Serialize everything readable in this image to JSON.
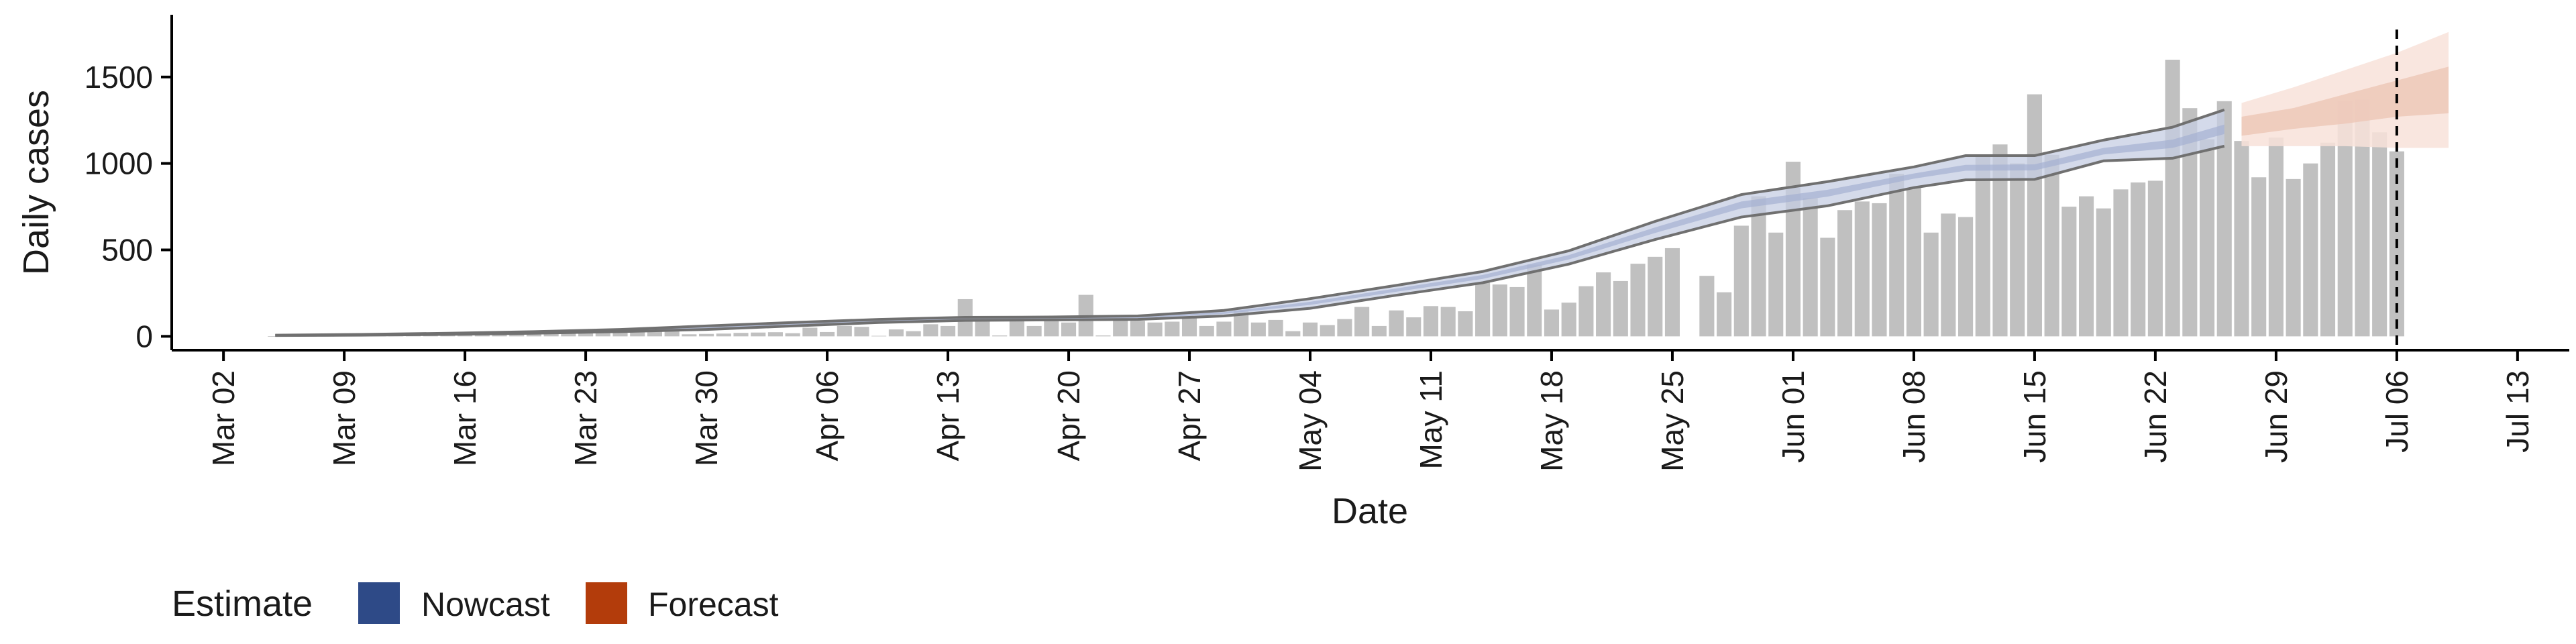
{
  "chart_data": {
    "type": "bar",
    "xlabel": "Date",
    "ylabel": "Daily cases",
    "x_ticks": [
      "Mar 02",
      "Mar 09",
      "Mar 16",
      "Mar 23",
      "Mar 30",
      "Apr 06",
      "Apr 13",
      "Apr 20",
      "Apr 27",
      "May 04",
      "May 11",
      "May 18",
      "May 25",
      "Jun 01",
      "Jun 08",
      "Jun 15",
      "Jun 22",
      "Jun 29",
      "Jul 06",
      "Jul 13"
    ],
    "y_ticks": [
      0,
      500,
      1000,
      1500
    ],
    "xlim": [
      "2020-02-28",
      "2020-07-16"
    ],
    "ylim": [
      -80,
      1860
    ],
    "vline_date": "2020-07-06",
    "legend": {
      "title": "Estimate",
      "position": "bottom-left",
      "items": [
        {
          "label": "Nowcast",
          "color": "#2E4A87"
        },
        {
          "label": "Forecast",
          "color": "#B33C0B"
        }
      ]
    },
    "colors": {
      "bars": "#BDBDBD",
      "nowcast_band": "#C6CDE3",
      "nowcast_core": "#A5B0D2",
      "nowcast_line": "#707070",
      "forecast_outer": "#F8E2D9",
      "forecast_inner": "#EDC8B8",
      "vline": "#000000"
    },
    "series": [
      {
        "name": "Daily cases",
        "type": "bar",
        "x": [
          "2020-03-05",
          "2020-03-06",
          "2020-03-07",
          "2020-03-08",
          "2020-03-09",
          "2020-03-10",
          "2020-03-11",
          "2020-03-12",
          "2020-03-13",
          "2020-03-14",
          "2020-03-15",
          "2020-03-16",
          "2020-03-17",
          "2020-03-18",
          "2020-03-19",
          "2020-03-20",
          "2020-03-21",
          "2020-03-22",
          "2020-03-23",
          "2020-03-24",
          "2020-03-25",
          "2020-03-26",
          "2020-03-27",
          "2020-03-28",
          "2020-03-29",
          "2020-03-30",
          "2020-03-31",
          "2020-04-01",
          "2020-04-02",
          "2020-04-03",
          "2020-04-04",
          "2020-04-05",
          "2020-04-06",
          "2020-04-07",
          "2020-04-08",
          "2020-04-09",
          "2020-04-10",
          "2020-04-11",
          "2020-04-12",
          "2020-04-13",
          "2020-04-14",
          "2020-04-15",
          "2020-04-16",
          "2020-04-17",
          "2020-04-18",
          "2020-04-19",
          "2020-04-20",
          "2020-04-21",
          "2020-04-22",
          "2020-04-23",
          "2020-04-24",
          "2020-04-25",
          "2020-04-26",
          "2020-04-27",
          "2020-04-28",
          "2020-04-29",
          "2020-04-30",
          "2020-05-01",
          "2020-05-02",
          "2020-05-03",
          "2020-05-04",
          "2020-05-05",
          "2020-05-06",
          "2020-05-07",
          "2020-05-08",
          "2020-05-09",
          "2020-05-10",
          "2020-05-11",
          "2020-05-12",
          "2020-05-13",
          "2020-05-14",
          "2020-05-15",
          "2020-05-16",
          "2020-05-17",
          "2020-05-18",
          "2020-05-19",
          "2020-05-20",
          "2020-05-21",
          "2020-05-22",
          "2020-05-23",
          "2020-05-24",
          "2020-05-25",
          "2020-05-26",
          "2020-05-27",
          "2020-05-28",
          "2020-05-29",
          "2020-05-30",
          "2020-05-31",
          "2020-06-01",
          "2020-06-02",
          "2020-06-03",
          "2020-06-04",
          "2020-06-05",
          "2020-06-06",
          "2020-06-07",
          "2020-06-08",
          "2020-06-09",
          "2020-06-10",
          "2020-06-11",
          "2020-06-12",
          "2020-06-13",
          "2020-06-14",
          "2020-06-15",
          "2020-06-16",
          "2020-06-17",
          "2020-06-18",
          "2020-06-19",
          "2020-06-20",
          "2020-06-21",
          "2020-06-22",
          "2020-06-23",
          "2020-06-24",
          "2020-06-25",
          "2020-06-26",
          "2020-06-27",
          "2020-06-28",
          "2020-06-29",
          "2020-06-30",
          "2020-07-01",
          "2020-07-02",
          "2020-07-03",
          "2020-07-04",
          "2020-07-05",
          "2020-07-06"
        ],
        "values": [
          1,
          1,
          2,
          2,
          3,
          3,
          4,
          5,
          6,
          7,
          8,
          9,
          10,
          12,
          14,
          15,
          17,
          19,
          21,
          22,
          24,
          26,
          28,
          30,
          12,
          14,
          16,
          20,
          22,
          24,
          18,
          50,
          25,
          60,
          55,
          3,
          40,
          30,
          70,
          60,
          215,
          100,
          5,
          110,
          60,
          95,
          80,
          240,
          5,
          95,
          90,
          80,
          85,
          115,
          60,
          85,
          150,
          80,
          95,
          30,
          80,
          65,
          100,
          170,
          60,
          150,
          110,
          175,
          170,
          145,
          310,
          300,
          285,
          415,
          155,
          195,
          290,
          370,
          320,
          420,
          460,
          510,
          0,
          350,
          255,
          640,
          810,
          600,
          1010,
          800,
          570,
          730,
          780,
          770,
          940,
          860,
          600,
          710,
          690,
          1050,
          1110,
          1000,
          1400,
          1050,
          750,
          810,
          740,
          850,
          890,
          900,
          1600,
          1320,
          1140,
          1360,
          1130,
          920,
          1150,
          910,
          1000,
          1120,
          1360,
          1370,
          1180,
          1070
        ]
      },
      {
        "name": "Nowcast",
        "type": "band",
        "x": [
          "2020-03-05",
          "2020-03-10",
          "2020-03-15",
          "2020-03-20",
          "2020-03-25",
          "2020-03-30",
          "2020-04-04",
          "2020-04-09",
          "2020-04-14",
          "2020-04-19",
          "2020-04-24",
          "2020-04-29",
          "2020-05-04",
          "2020-05-09",
          "2020-05-14",
          "2020-05-19",
          "2020-05-24",
          "2020-05-29",
          "2020-06-03",
          "2020-06-08",
          "2020-06-11",
          "2020-06-15",
          "2020-06-19",
          "2020-06-23",
          "2020-06-26"
        ],
        "lower": [
          5,
          7,
          11,
          18,
          27,
          40,
          60,
          80,
          92,
          95,
          98,
          118,
          162,
          238,
          310,
          418,
          560,
          690,
          755,
          860,
          905,
          908,
          1015,
          1030,
          1100
        ],
        "upper": [
          7,
          11,
          18,
          27,
          40,
          60,
          80,
          98,
          110,
          112,
          118,
          150,
          218,
          295,
          375,
          495,
          665,
          820,
          895,
          980,
          1045,
          1045,
          1135,
          1210,
          1310
        ],
        "core_lower": [
          6,
          8,
          13,
          20,
          30,
          46,
          67,
          87,
          98,
          101,
          105,
          130,
          182,
          258,
          332,
          445,
          598,
          740,
          808,
          912,
          958,
          960,
          1052,
          1090,
          1170
        ],
        "core_upper": [
          6,
          10,
          16,
          25,
          37,
          55,
          74,
          93,
          104,
          107,
          112,
          140,
          200,
          277,
          355,
          470,
          630,
          780,
          848,
          942,
          992,
          995,
          1090,
          1138,
          1225
        ]
      },
      {
        "name": "Forecast",
        "type": "band",
        "x": [
          "2020-06-27",
          "2020-06-30",
          "2020-07-03",
          "2020-07-06",
          "2020-07-09"
        ],
        "lower": [
          1100,
          1100,
          1100,
          1090,
          1090
        ],
        "upper": [
          1350,
          1440,
          1540,
          1640,
          1760
        ],
        "core_lower": [
          1160,
          1200,
          1230,
          1270,
          1290
        ],
        "core_upper": [
          1270,
          1320,
          1400,
          1480,
          1560
        ]
      }
    ]
  }
}
